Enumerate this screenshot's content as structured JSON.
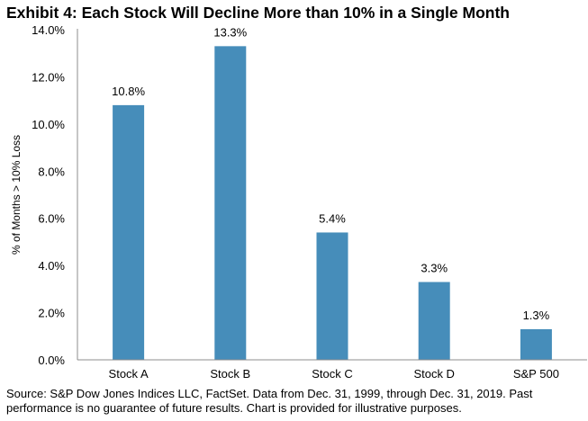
{
  "chart_data": {
    "type": "bar",
    "title": "Exhibit 4: Each Stock Will Decline More than 10% in a Single Month",
    "xlabel": "",
    "ylabel": "% of Months > 10% Loss",
    "categories": [
      "Stock A",
      "Stock B",
      "Stock C",
      "Stock D",
      "S&P 500"
    ],
    "values": [
      10.8,
      13.3,
      5.4,
      3.3,
      1.3
    ],
    "data_labels": [
      "10.8%",
      "13.3%",
      "5.4%",
      "3.3%",
      "1.3%"
    ],
    "ylim": [
      0,
      14
    ],
    "yticks": [
      0,
      2,
      4,
      6,
      8,
      10,
      12,
      14
    ],
    "ytick_labels": [
      "0.0%",
      "2.0%",
      "4.0%",
      "6.0%",
      "8.0%",
      "10.0%",
      "12.0%",
      "14.0%"
    ],
    "grid": false,
    "legend": "none",
    "bar_color": "#468dba"
  },
  "footnote": "Source: S&P Dow Jones Indices LLC, FactSet.  Data from Dec. 31, 1999, through Dec. 31, 2019.  Past performance is no guarantee of future results.  Chart is provided for illustrative purposes."
}
